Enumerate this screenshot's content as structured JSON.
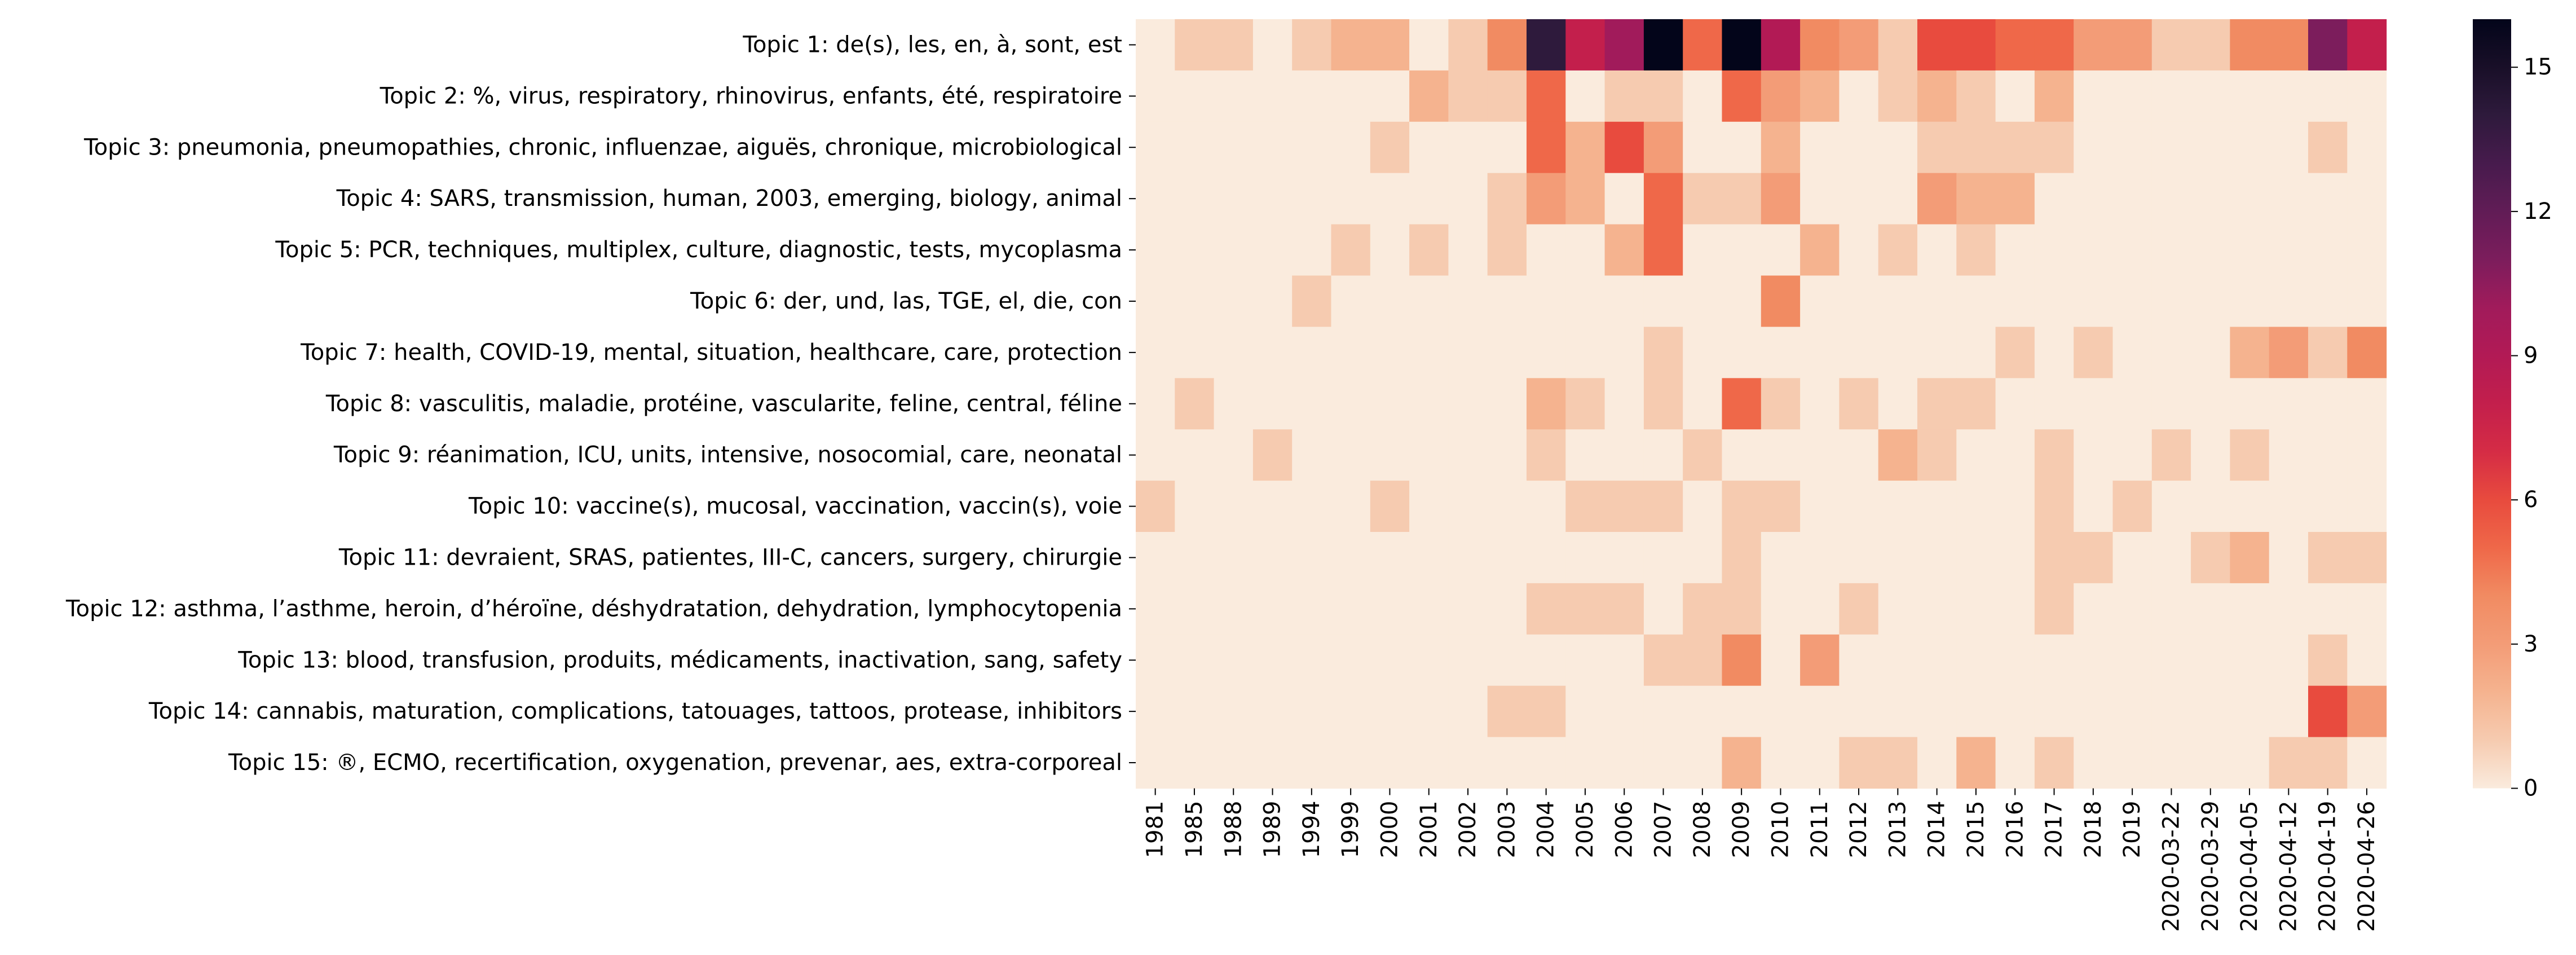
{
  "chart_data": {
    "type": "heatmap",
    "title": "",
    "xlabel": "",
    "ylabel": "",
    "x_categories": [
      "1981",
      "1985",
      "1988",
      "1989",
      "1994",
      "1999",
      "2000",
      "2001",
      "2002",
      "2003",
      "2004",
      "2005",
      "2006",
      "2007",
      "2008",
      "2009",
      "2010",
      "2011",
      "2012",
      "2013",
      "2014",
      "2015",
      "2016",
      "2017",
      "2018",
      "2019",
      "2020-03-22",
      "2020-03-29",
      "2020-04-05",
      "2020-04-12",
      "2020-04-19",
      "2020-04-26"
    ],
    "x_tick_labels": [
      "1981",
      "1985",
      "1988",
      "1989",
      "1994",
      "1999",
      "2000",
      "2001",
      "2002",
      "2003",
      "2004",
      "2005",
      "2006",
      "2007",
      "2008",
      "2009",
      "2010",
      "2011",
      "2012",
      "2013",
      "2014",
      "2015",
      "2016",
      "2017",
      "2018",
      "2019",
      "2020-03-22",
      "2020-03-29",
      "2020-04-05",
      "2020-04-12",
      "2020-04-19",
      "2020-04-26"
    ],
    "y_categories": [
      "Topic 1: de(s), les, en, à, sont, est",
      "Topic 2: %, virus, respiratory, rhinovirus, enfants, été, respiratoire",
      "Topic 3: pneumonia, pneumopathies, chronic, influenzae, aiguës, chronique, microbiological",
      "Topic 4: SARS, transmission, human, 2003, emerging, biology, animal",
      "Topic 5: PCR, techniques, multiplex, culture, diagnostic, tests, mycoplasma",
      "Topic 6: der, und, las, TGE, el, die, con",
      "Topic 7: health, COVID-19, mental, situation, healthcare, care, protection",
      "Topic 8: vasculitis, maladie, protéine, vascularite, feline, central, féline",
      "Topic 9: réanimation, ICU, units, intensive, nosocomial, care, neonatal",
      "Topic 10: vaccine(s), mucosal, vaccination, vaccin(s), voie",
      "Topic 11: devraient, SRAS, patientes, III-C, cancers, surgery, chirurgie",
      "Topic 12: asthma, l’asthme, heroin, d’héroïne, déshydratation, dehydration, lymphocytopenia",
      "Topic 13: blood, transfusion, produits, médicaments, inactivation, sang, safety",
      "Topic 14: cannabis, maturation, complications, tatouages, tattoos, protease, inhibitors",
      "Topic 15: ®, ECMO, recertification, oxygenation, prevenar, aes, extra-corporeal"
    ],
    "values": [
      [
        0,
        1,
        1,
        0,
        1,
        2,
        2,
        0,
        1,
        4,
        14,
        8,
        10,
        16,
        5,
        16,
        9,
        4,
        3,
        1,
        6,
        6,
        5,
        5,
        3,
        3,
        1,
        1,
        4,
        4,
        11,
        8
      ],
      [
        0,
        0,
        0,
        0,
        0,
        0,
        0,
        2,
        1,
        1,
        5,
        0,
        1,
        1,
        0,
        5,
        3,
        2,
        0,
        1,
        2,
        1,
        0,
        2,
        0,
        0,
        0,
        0,
        0,
        0,
        0,
        0
      ],
      [
        0,
        0,
        0,
        0,
        0,
        0,
        1,
        0,
        0,
        0,
        5,
        2,
        6,
        3,
        0,
        0,
        2,
        0,
        0,
        0,
        1,
        1,
        1,
        1,
        0,
        0,
        0,
        0,
        0,
        0,
        1,
        0
      ],
      [
        0,
        0,
        0,
        0,
        0,
        0,
        0,
        0,
        0,
        1,
        3,
        2,
        0,
        5,
        1,
        1,
        3,
        0,
        0,
        0,
        3,
        2,
        2,
        0,
        0,
        0,
        0,
        0,
        0,
        0,
        0,
        0
      ],
      [
        0,
        0,
        0,
        0,
        0,
        1,
        0,
        1,
        0,
        1,
        0,
        0,
        2,
        5,
        0,
        0,
        0,
        2,
        0,
        1,
        0,
        1,
        0,
        0,
        0,
        0,
        0,
        0,
        0,
        0,
        0,
        0
      ],
      [
        0,
        0,
        0,
        0,
        1,
        0,
        0,
        0,
        0,
        0,
        0,
        0,
        0,
        0,
        0,
        0,
        4,
        0,
        0,
        0,
        0,
        0,
        0,
        0,
        0,
        0,
        0,
        0,
        0,
        0,
        0,
        0
      ],
      [
        0,
        0,
        0,
        0,
        0,
        0,
        0,
        0,
        0,
        0,
        0,
        0,
        0,
        1,
        0,
        0,
        0,
        0,
        0,
        0,
        0,
        0,
        1,
        0,
        1,
        0,
        0,
        0,
        2,
        3,
        1,
        4
      ],
      [
        0,
        1,
        0,
        0,
        0,
        0,
        0,
        0,
        0,
        0,
        2,
        1,
        0,
        1,
        0,
        5,
        1,
        0,
        1,
        0,
        1,
        1,
        0,
        0,
        0,
        0,
        0,
        0,
        0,
        0,
        0,
        0
      ],
      [
        0,
        0,
        0,
        1,
        0,
        0,
        0,
        0,
        0,
        0,
        1,
        0,
        0,
        0,
        1,
        0,
        0,
        0,
        0,
        2,
        1,
        0,
        0,
        1,
        0,
        0,
        1,
        0,
        1,
        0,
        0,
        0
      ],
      [
        1,
        0,
        0,
        0,
        0,
        0,
        1,
        0,
        0,
        0,
        0,
        1,
        1,
        1,
        0,
        1,
        1,
        0,
        0,
        0,
        0,
        0,
        0,
        1,
        0,
        1,
        0,
        0,
        0,
        0,
        0,
        0
      ],
      [
        0,
        0,
        0,
        0,
        0,
        0,
        0,
        0,
        0,
        0,
        0,
        0,
        0,
        0,
        0,
        1,
        0,
        0,
        0,
        0,
        0,
        0,
        0,
        1,
        1,
        0,
        0,
        1,
        2,
        0,
        1,
        1
      ],
      [
        0,
        0,
        0,
        0,
        0,
        0,
        0,
        0,
        0,
        0,
        1,
        1,
        1,
        0,
        1,
        1,
        0,
        0,
        1,
        0,
        0,
        0,
        0,
        1,
        0,
        0,
        0,
        0,
        0,
        0,
        0,
        0
      ],
      [
        0,
        0,
        0,
        0,
        0,
        0,
        0,
        0,
        0,
        0,
        0,
        0,
        0,
        1,
        1,
        4,
        0,
        3,
        0,
        0,
        0,
        0,
        0,
        0,
        0,
        0,
        0,
        0,
        0,
        0,
        1,
        0
      ],
      [
        0,
        0,
        0,
        0,
        0,
        0,
        0,
        0,
        0,
        1,
        1,
        0,
        0,
        0,
        0,
        0,
        0,
        0,
        0,
        0,
        0,
        0,
        0,
        0,
        0,
        0,
        0,
        0,
        0,
        0,
        6,
        3
      ],
      [
        0,
        0,
        0,
        0,
        0,
        0,
        0,
        0,
        0,
        0,
        0,
        0,
        0,
        0,
        0,
        2,
        0,
        0,
        1,
        1,
        0,
        2,
        0,
        1,
        0,
        0,
        0,
        0,
        0,
        1,
        1,
        0
      ]
    ],
    "colorbar": {
      "range": [
        0,
        16
      ],
      "ticks": [
        0,
        3,
        6,
        9,
        12,
        15
      ],
      "tick_labels": [
        "0",
        "3",
        "6",
        "9",
        "12",
        "15"
      ],
      "colormap": "rocket_r"
    },
    "colorscale": [
      [
        0,
        "#faebdd"
      ],
      [
        1,
        "#f6cbb0"
      ],
      [
        2,
        "#f5b38f"
      ],
      [
        3,
        "#f39c77"
      ],
      [
        4,
        "#f18b62"
      ],
      [
        5,
        "#ef6849"
      ],
      [
        6,
        "#e84b3e"
      ],
      [
        7,
        "#d52c45"
      ],
      [
        8,
        "#c31f4c"
      ],
      [
        9,
        "#b21a55"
      ],
      [
        10,
        "#a11b5b"
      ],
      [
        11,
        "#7c1d5c"
      ],
      [
        12,
        "#611c56"
      ],
      [
        13,
        "#471b4d"
      ],
      [
        14,
        "#2e1a3c"
      ],
      [
        15,
        "#190f28"
      ],
      [
        16,
        "#03051a"
      ]
    ],
    "grid": false
  }
}
